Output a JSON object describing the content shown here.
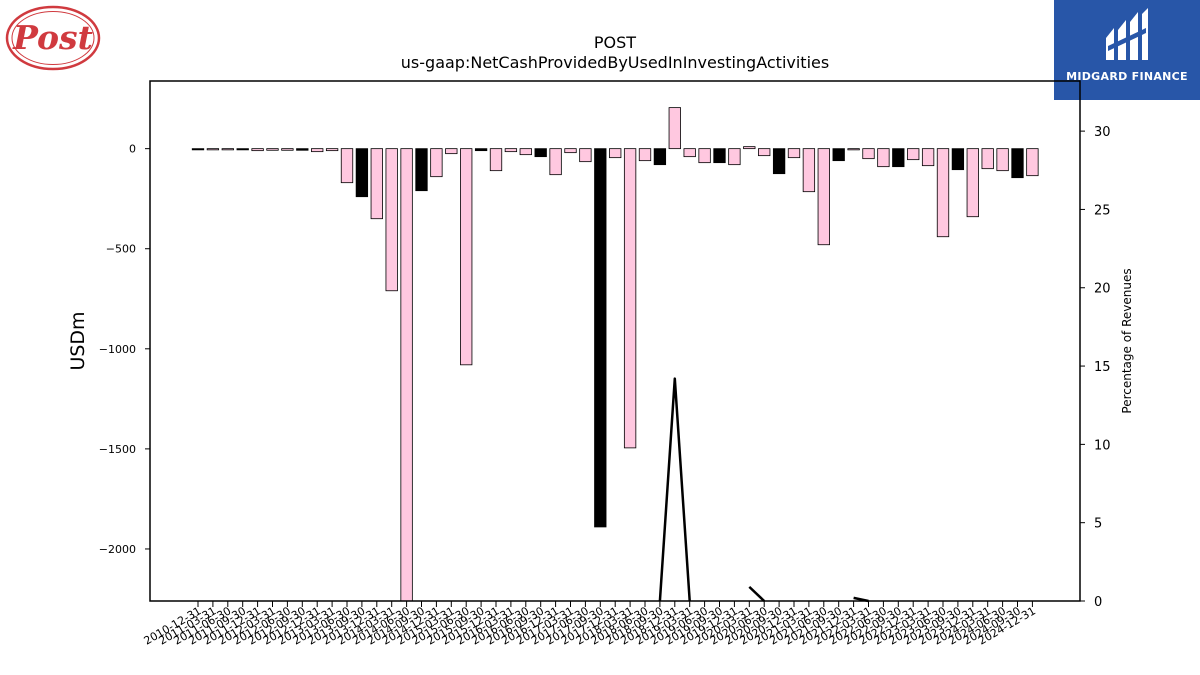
{
  "company_logo": {
    "text": "Post",
    "color": "#d03a3f"
  },
  "brand": {
    "name": "MIDGARD FINANCE",
    "bg_color": "#2856a8"
  },
  "chart_data": {
    "type": "bar",
    "title": "POST",
    "subtitle": "us-gaap:NetCashProvidedByUsedInInvestingActivities",
    "ylabel": "USDm",
    "ylabel_right": "Percentage of Revenues",
    "ylim": [
      -2260,
      338
    ],
    "ylim_right": [
      0,
      33.2
    ],
    "yticks": [
      0,
      -500,
      -1000,
      -1500,
      -2000
    ],
    "yticks_right": [
      0,
      5,
      10,
      15,
      20,
      25,
      30
    ],
    "colors": {
      "fy": "#000000",
      "quarter": "#ffc8e0",
      "edge": "#000000",
      "line": "#000000"
    },
    "categories": [
      "2010-12-31",
      "2011-03-31",
      "2011-06-30",
      "2011-09-30",
      "2011-12-31",
      "2012-03-31",
      "2012-06-30",
      "2012-09-30",
      "2012-12-31",
      "2013-03-31",
      "2013-06-30",
      "2013-09-30",
      "2013-12-31",
      "2014-03-31",
      "2014-06-30",
      "2014-09-30",
      "2014-12-31",
      "2015-03-31",
      "2015-06-30",
      "2015-09-30",
      "2015-12-31",
      "2016-03-31",
      "2016-06-30",
      "2016-09-30",
      "2016-12-31",
      "2017-03-31",
      "2017-06-30",
      "2017-09-30",
      "2017-12-31",
      "2018-03-31",
      "2018-06-30",
      "2018-09-30",
      "2018-12-31",
      "2019-03-31",
      "2019-06-30",
      "2019-09-30",
      "2019-12-31",
      "2020-03-31",
      "2020-06-30",
      "2020-09-30",
      "2020-12-31",
      "2021-03-31",
      "2021-06-30",
      "2021-09-30",
      "2021-12-31",
      "2022-03-31",
      "2022-06-30",
      "2022-09-30",
      "2022-12-31",
      "2023-03-31",
      "2023-06-30",
      "2023-09-30",
      "2023-12-31",
      "2024-03-31",
      "2024-06-30",
      "2024-09-30",
      "2024-12-31"
    ],
    "fiscal_year_end": [
      true,
      false,
      false,
      true,
      false,
      false,
      false,
      true,
      false,
      false,
      false,
      true,
      false,
      false,
      false,
      true,
      false,
      false,
      false,
      true,
      false,
      false,
      false,
      true,
      false,
      false,
      false,
      true,
      false,
      false,
      false,
      true,
      false,
      false,
      false,
      true,
      false,
      false,
      false,
      true,
      false,
      false,
      false,
      true,
      false,
      false,
      false,
      true,
      false,
      false,
      false,
      true,
      false,
      false,
      false,
      true,
      false
    ],
    "values": [
      -5,
      -6,
      -6,
      -6,
      -10,
      -8,
      -8,
      -8,
      -15,
      -10,
      -170,
      -240,
      -350,
      -710,
      -2270,
      -210,
      -140,
      -25,
      -1080,
      -10,
      -110,
      -15,
      -30,
      -40,
      -130,
      -20,
      -65,
      -1890,
      -45,
      -1495,
      -60,
      -80,
      205,
      -40,
      -70,
      -70,
      -80,
      10,
      -35,
      -125,
      -45,
      -215,
      -480,
      -60,
      -5,
      -50,
      -90,
      -90,
      -55,
      -85,
      -440,
      -105,
      -340,
      -100,
      -110,
      -145,
      -135
    ],
    "line_series": {
      "name": "Percentage of Revenues",
      "values": [
        null,
        null,
        null,
        null,
        null,
        null,
        null,
        null,
        null,
        null,
        null,
        null,
        null,
        null,
        null,
        null,
        null,
        null,
        null,
        null,
        null,
        null,
        null,
        null,
        null,
        null,
        null,
        null,
        null,
        null,
        null,
        0,
        14.2,
        0,
        null,
        null,
        null,
        0.9,
        0,
        null,
        null,
        null,
        null,
        null,
        0.2,
        0,
        null,
        null,
        null,
        null,
        null,
        null,
        null,
        null,
        null,
        null,
        null
      ]
    }
  }
}
